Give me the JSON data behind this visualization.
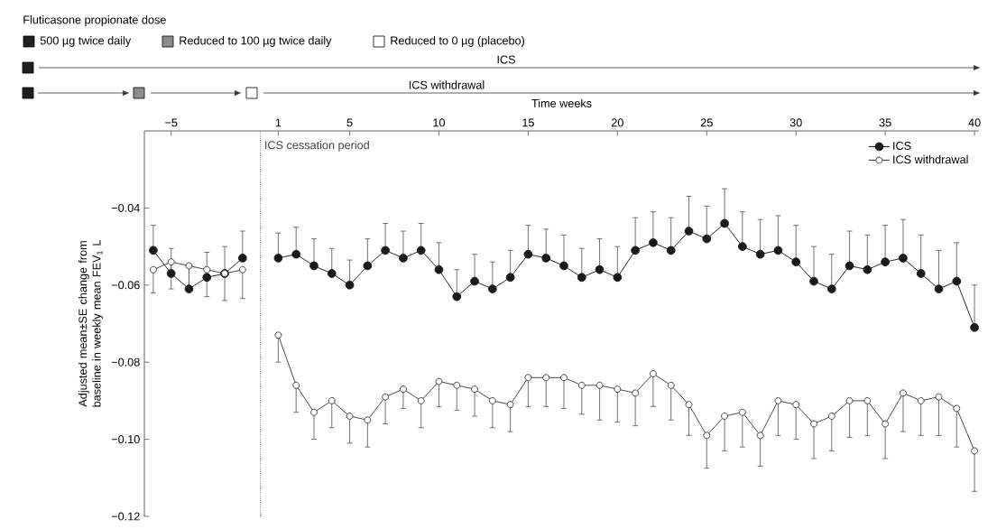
{
  "chart_data": {
    "type": "line",
    "title": "Fluticasone propionate dose",
    "xlabel": "Time weeks",
    "ylabel": "Adjusted mean±SE change from baseline in weekly mean FEV$_{1}$ L",
    "annotations": [
      "500 µg twice daily",
      "Reduced to 100 µg twice daily",
      "Reduced to 0 µg (placebo)",
      "ICS",
      "ICS withdrawal"
    ],
    "x": [
      -6,
      -5,
      -4,
      -3,
      -2,
      -1,
      1,
      2,
      3,
      4,
      5,
      6,
      7,
      8,
      9,
      10,
      11,
      12,
      13,
      14,
      15,
      16,
      17,
      18,
      19,
      20,
      21,
      22,
      23,
      24,
      25,
      26,
      27,
      28,
      29,
      30,
      31,
      32,
      33,
      34,
      35,
      36,
      37,
      38,
      39,
      40
    ],
    "series": [
      {
        "name": "ICS",
        "color": "#1a1a1a",
        "values": [
          -0.051,
          -0.057,
          -0.061,
          -0.058,
          -0.057,
          -0.053,
          -0.053,
          -0.052,
          -0.055,
          -0.057,
          -0.06,
          -0.055,
          -0.051,
          -0.053,
          -0.051,
          -0.056,
          -0.063,
          -0.059,
          -0.061,
          -0.058,
          -0.052,
          -0.053,
          -0.055,
          -0.058,
          -0.056,
          -0.058,
          -0.051,
          -0.049,
          -0.051,
          -0.046,
          -0.048,
          -0.044,
          -0.05,
          -0.052,
          -0.051,
          -0.054,
          -0.059,
          -0.061,
          -0.055,
          -0.056,
          -0.054,
          -0.053,
          -0.057,
          -0.061,
          -0.059,
          -0.071
        ],
        "errors": [
          [
            -0.051,
            -0.0445
          ],
          [
            -0.057,
            -0.0505
          ],
          [
            -0.061,
            -0.0555
          ],
          [
            -0.058,
            -0.0515
          ],
          [
            -0.057,
            -0.05
          ],
          [
            -0.053,
            -0.046
          ],
          [
            -0.053,
            -0.0465
          ],
          [
            -0.052,
            -0.045
          ],
          [
            -0.055,
            -0.048
          ],
          [
            -0.057,
            -0.0505
          ],
          [
            -0.06,
            -0.0535
          ],
          [
            -0.055,
            -0.048
          ],
          [
            -0.051,
            -0.044
          ],
          [
            -0.053,
            -0.046
          ],
          [
            -0.051,
            -0.044
          ],
          [
            -0.056,
            -0.049
          ],
          [
            -0.063,
            -0.056
          ],
          [
            -0.059,
            -0.052
          ],
          [
            -0.061,
            -0.054
          ],
          [
            -0.058,
            -0.051
          ],
          [
            -0.052,
            -0.0445
          ],
          [
            -0.053,
            -0.0455
          ],
          [
            -0.055,
            -0.047
          ],
          [
            -0.058,
            -0.0505
          ],
          [
            -0.056,
            -0.048
          ],
          [
            -0.058,
            -0.05
          ],
          [
            -0.051,
            -0.0425
          ],
          [
            -0.049,
            -0.041
          ],
          [
            -0.051,
            -0.0425
          ],
          [
            -0.046,
            -0.037
          ],
          [
            -0.048,
            -0.0395
          ],
          [
            -0.044,
            -0.035
          ],
          [
            -0.05,
            -0.041
          ],
          [
            -0.052,
            -0.043
          ],
          [
            -0.051,
            -0.042
          ],
          [
            -0.054,
            -0.0445
          ],
          [
            -0.059,
            -0.05
          ],
          [
            -0.061,
            -0.052
          ],
          [
            -0.055,
            -0.046
          ],
          [
            -0.056,
            -0.047
          ],
          [
            -0.054,
            -0.0445
          ],
          [
            -0.053,
            -0.043
          ],
          [
            -0.057,
            -0.047
          ],
          [
            -0.061,
            -0.051
          ],
          [
            -0.059,
            -0.049
          ],
          [
            -0.071,
            -0.06
          ]
        ]
      },
      {
        "name": "ICS withdrawal",
        "color": "#3a3a3a",
        "values": [
          -0.056,
          -0.054,
          -0.055,
          -0.056,
          -0.057,
          -0.056,
          -0.073,
          -0.086,
          -0.093,
          -0.09,
          -0.094,
          -0.095,
          -0.089,
          -0.087,
          -0.09,
          -0.085,
          -0.086,
          -0.087,
          -0.09,
          -0.091,
          -0.084,
          -0.084,
          -0.084,
          -0.086,
          -0.086,
          -0.087,
          -0.088,
          -0.083,
          -0.086,
          -0.091,
          -0.099,
          -0.094,
          -0.093,
          -0.099,
          -0.09,
          -0.091,
          -0.096,
          -0.094,
          -0.09,
          -0.09,
          -0.096,
          -0.088,
          -0.09,
          -0.089,
          -0.092,
          -0.103
        ],
        "errors": [
          [
            -0.062,
            -0.056
          ],
          [
            -0.061,
            -0.054
          ],
          [
            -0.0605,
            -0.055
          ],
          [
            -0.063,
            -0.056
          ],
          [
            -0.064,
            -0.057
          ],
          [
            -0.0635,
            -0.056
          ],
          [
            -0.08,
            -0.073
          ],
          [
            -0.093,
            -0.086
          ],
          [
            -0.1,
            -0.093
          ],
          [
            -0.097,
            -0.09
          ],
          [
            -0.101,
            -0.094
          ],
          [
            -0.102,
            -0.095
          ],
          [
            -0.096,
            -0.089
          ],
          [
            -0.092,
            -0.087
          ],
          [
            -0.097,
            -0.09
          ],
          [
            -0.0915,
            -0.085
          ],
          [
            -0.0925,
            -0.086
          ],
          [
            -0.094,
            -0.087
          ],
          [
            -0.097,
            -0.09
          ],
          [
            -0.098,
            -0.091
          ],
          [
            -0.0915,
            -0.084
          ],
          [
            -0.0915,
            -0.084
          ],
          [
            -0.092,
            -0.084
          ],
          [
            -0.0935,
            -0.086
          ],
          [
            -0.095,
            -0.086
          ],
          [
            -0.0955,
            -0.087
          ],
          [
            -0.0965,
            -0.088
          ],
          [
            -0.0915,
            -0.083
          ],
          [
            -0.095,
            -0.086
          ],
          [
            -0.099,
            -0.091
          ],
          [
            -0.1075,
            -0.099
          ],
          [
            -0.103,
            -0.094
          ],
          [
            -0.102,
            -0.093
          ],
          [
            -0.107,
            -0.099
          ],
          [
            -0.099,
            -0.09
          ],
          [
            -0.1,
            -0.091
          ],
          [
            -0.105,
            -0.096
          ],
          [
            -0.103,
            -0.094
          ],
          [
            -0.0995,
            -0.09
          ],
          [
            -0.099,
            -0.09
          ],
          [
            -0.105,
            -0.096
          ],
          [
            -0.098,
            -0.088
          ],
          [
            -0.099,
            -0.09
          ],
          [
            -0.099,
            -0.089
          ],
          [
            -0.102,
            -0.092
          ],
          [
            -0.1135,
            -0.103
          ]
        ]
      }
    ],
    "xlim": [
      -6.5,
      40.25
    ],
    "xticks": [
      {
        "value": -5,
        "label": "−5"
      },
      1,
      5,
      10,
      15,
      20,
      25,
      30,
      35,
      40
    ],
    "ylim": [
      -0.12,
      -0.02
    ],
    "yticks": [
      {
        "value": -0.12,
        "label": "−0.12"
      },
      {
        "value": -0.1,
        "label": "−0.10"
      },
      {
        "value": -0.08,
        "label": "−0.08"
      },
      {
        "value": -0.06,
        "label": "−0.06"
      },
      {
        "value": -0.04,
        "label": "−0.04"
      }
    ],
    "ref_lines": [
      {
        "axis": "x",
        "value": 0,
        "label": "ICS cessation period",
        "line_style": "dotted"
      }
    ],
    "legend": "top right",
    "marker": "circle",
    "line_style": "solid"
  }
}
